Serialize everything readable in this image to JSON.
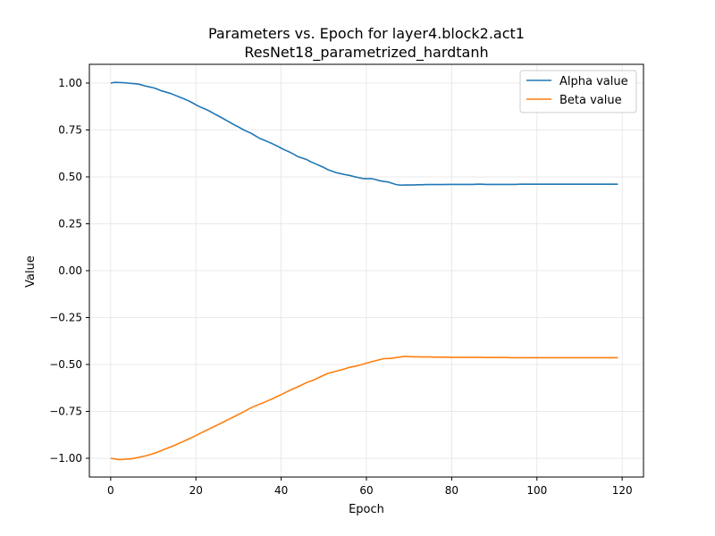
{
  "chart_data": {
    "type": "line",
    "title": "Parameters vs. Epoch for layer4.block2.act1",
    "subtitle": "ResNet18_parametrized_hardtanh",
    "xlabel": "Epoch",
    "ylabel": "Value",
    "xlim": [
      -5,
      125
    ],
    "ylim": [
      -1.1,
      1.1
    ],
    "xticks": [
      0,
      20,
      40,
      60,
      80,
      100,
      120
    ],
    "yticks": [
      -1.0,
      -0.75,
      -0.5,
      -0.25,
      0.0,
      0.25,
      0.5,
      0.75,
      1.0
    ],
    "xtick_labels": [
      "0",
      "20",
      "40",
      "60",
      "80",
      "100",
      "120"
    ],
    "ytick_labels": [
      "−1.00",
      "−0.75",
      "−0.50",
      "−0.25",
      "0.00",
      "0.25",
      "0.50",
      "0.75",
      "1.00"
    ],
    "grid": true,
    "legend_position": "top-right",
    "series": [
      {
        "name": "Alpha value",
        "color": "#1f77b4",
        "x": [
          0,
          1,
          2,
          3,
          4,
          5,
          6,
          7,
          8,
          9,
          10,
          11,
          12,
          13,
          14,
          15,
          16,
          17,
          18,
          19,
          20,
          21,
          22,
          23,
          24,
          25,
          26,
          27,
          28,
          29,
          30,
          31,
          32,
          33,
          34,
          35,
          36,
          37,
          38,
          39,
          40,
          41,
          42,
          43,
          44,
          45,
          46,
          47,
          48,
          49,
          50,
          51,
          52,
          53,
          54,
          55,
          56,
          57,
          58,
          59,
          60,
          61,
          62,
          63,
          64,
          65,
          66,
          67,
          68,
          69,
          70,
          71,
          72,
          73,
          74,
          75,
          76,
          77,
          78,
          79,
          80,
          81,
          82,
          83,
          84,
          85,
          86,
          87,
          88,
          89,
          90,
          91,
          92,
          93,
          94,
          95,
          96,
          97,
          98,
          99,
          100,
          101,
          102,
          103,
          104,
          105,
          106,
          107,
          108,
          109,
          110,
          111,
          112,
          113,
          114,
          115,
          116,
          117,
          118,
          119
        ],
        "y": [
          1.0,
          1.004,
          1.003,
          1.002,
          1.0,
          0.998,
          0.996,
          0.992,
          0.985,
          0.98,
          0.975,
          0.967,
          0.958,
          0.952,
          0.945,
          0.936,
          0.927,
          0.918,
          0.908,
          0.897,
          0.884,
          0.873,
          0.863,
          0.853,
          0.84,
          0.828,
          0.816,
          0.803,
          0.79,
          0.777,
          0.766,
          0.753,
          0.742,
          0.732,
          0.718,
          0.705,
          0.696,
          0.686,
          0.676,
          0.665,
          0.653,
          0.642,
          0.632,
          0.62,
          0.607,
          0.6,
          0.592,
          0.58,
          0.57,
          0.56,
          0.55,
          0.538,
          0.53,
          0.522,
          0.517,
          0.512,
          0.508,
          0.502,
          0.497,
          0.492,
          0.49,
          0.491,
          0.487,
          0.48,
          0.476,
          0.473,
          0.466,
          0.459,
          0.456,
          0.457,
          0.457,
          0.457,
          0.458,
          0.458,
          0.459,
          0.459,
          0.459,
          0.459,
          0.459,
          0.46,
          0.46,
          0.46,
          0.46,
          0.46,
          0.46,
          0.46,
          0.461,
          0.461,
          0.46,
          0.46,
          0.46,
          0.46,
          0.46,
          0.46,
          0.46,
          0.46,
          0.461,
          0.461,
          0.461,
          0.461,
          0.461,
          0.461,
          0.461,
          0.461,
          0.461,
          0.461,
          0.461,
          0.461,
          0.461,
          0.461,
          0.461,
          0.461,
          0.461,
          0.461,
          0.461,
          0.461,
          0.461,
          0.461,
          0.461,
          0.461
        ]
      },
      {
        "name": "Beta value",
        "color": "#ff7f0e",
        "x": [
          0,
          1,
          2,
          3,
          4,
          5,
          6,
          7,
          8,
          9,
          10,
          11,
          12,
          13,
          14,
          15,
          16,
          17,
          18,
          19,
          20,
          21,
          22,
          23,
          24,
          25,
          26,
          27,
          28,
          29,
          30,
          31,
          32,
          33,
          34,
          35,
          36,
          37,
          38,
          39,
          40,
          41,
          42,
          43,
          44,
          45,
          46,
          47,
          48,
          49,
          50,
          51,
          52,
          53,
          54,
          55,
          56,
          57,
          58,
          59,
          60,
          61,
          62,
          63,
          64,
          65,
          66,
          67,
          68,
          69,
          70,
          71,
          72,
          73,
          74,
          75,
          76,
          77,
          78,
          79,
          80,
          81,
          82,
          83,
          84,
          85,
          86,
          87,
          88,
          89,
          90,
          91,
          92,
          93,
          94,
          95,
          96,
          97,
          98,
          99,
          100,
          101,
          102,
          103,
          104,
          105,
          106,
          107,
          108,
          109,
          110,
          111,
          112,
          113,
          114,
          115,
          116,
          117,
          118,
          119
        ],
        "y": [
          -1.0,
          -1.004,
          -1.007,
          -1.006,
          -1.004,
          -1.002,
          -0.998,
          -0.993,
          -0.988,
          -0.982,
          -0.975,
          -0.967,
          -0.958,
          -0.949,
          -0.94,
          -0.931,
          -0.921,
          -0.911,
          -0.9,
          -0.89,
          -0.879,
          -0.867,
          -0.856,
          -0.845,
          -0.834,
          -0.823,
          -0.812,
          -0.8,
          -0.789,
          -0.778,
          -0.766,
          -0.755,
          -0.742,
          -0.73,
          -0.72,
          -0.711,
          -0.702,
          -0.692,
          -0.682,
          -0.671,
          -0.661,
          -0.649,
          -0.638,
          -0.628,
          -0.618,
          -0.607,
          -0.596,
          -0.588,
          -0.579,
          -0.568,
          -0.557,
          -0.547,
          -0.541,
          -0.535,
          -0.529,
          -0.523,
          -0.515,
          -0.511,
          -0.506,
          -0.5,
          -0.493,
          -0.487,
          -0.481,
          -0.475,
          -0.469,
          -0.468,
          -0.467,
          -0.463,
          -0.46,
          -0.457,
          -0.458,
          -0.459,
          -0.459,
          -0.46,
          -0.46,
          -0.46,
          -0.461,
          -0.461,
          -0.461,
          -0.461,
          -0.462,
          -0.462,
          -0.462,
          -0.462,
          -0.462,
          -0.462,
          -0.462,
          -0.462,
          -0.463,
          -0.463,
          -0.463,
          -0.463,
          -0.463,
          -0.463,
          -0.464,
          -0.464,
          -0.464,
          -0.464,
          -0.464,
          -0.464,
          -0.464,
          -0.464,
          -0.464,
          -0.464,
          -0.464,
          -0.464,
          -0.464,
          -0.464,
          -0.464,
          -0.464,
          -0.464,
          -0.464,
          -0.464,
          -0.464,
          -0.464,
          -0.464,
          -0.464,
          -0.464,
          -0.464,
          -0.464
        ]
      }
    ]
  }
}
